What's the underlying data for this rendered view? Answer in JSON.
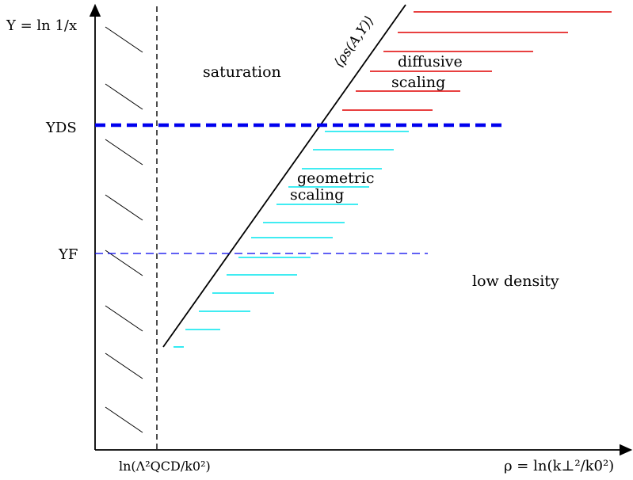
{
  "axes": {
    "y_label": "Y = ln 1/x",
    "x_label": "ρ = ln(k⊥²/k0²)",
    "x_marker_label": "ln(Λ²QCD/k0²)"
  },
  "levels": {
    "y_ds": "YDS",
    "y_f": "YF"
  },
  "regions": {
    "saturation": "saturation",
    "low_density": "low density",
    "diffusive_1": "diffusive",
    "diffusive_2": "scaling",
    "geometric_1": "geometric",
    "geometric_2": "scaling"
  },
  "saturation_line_label": "⟨ρs(A,Y)⟩",
  "colors": {
    "diffusive_lines": "#e00000",
    "geometric_lines": "#00e5ee",
    "ds_line": "#0000ee",
    "f_line": "#0000ee"
  }
}
